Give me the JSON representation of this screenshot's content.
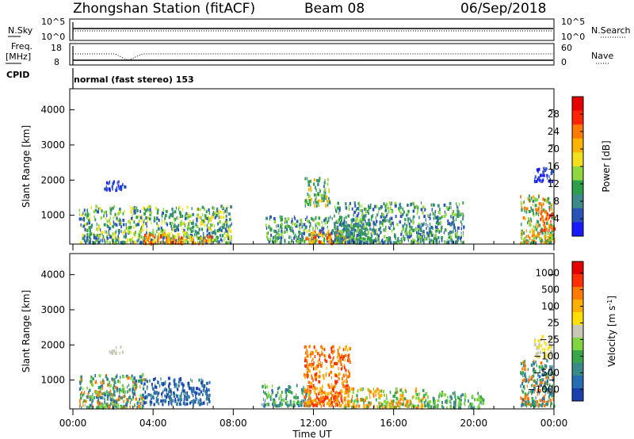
{
  "header": {
    "title": "Zhongshan Station (fitACF)",
    "beam": "Beam 08",
    "date": "06/Sep/2018"
  },
  "nsky_panel": {
    "left_label": "N.Sky",
    "left_ticks": [
      "10^5",
      "10^0"
    ],
    "right_label": "N.Search",
    "right_ticks": [
      "10^5",
      "10^0"
    ]
  },
  "freq_panel": {
    "left_label_line1": "Freq.",
    "left_label_line2": "[MHz]",
    "left_ticks": [
      "18",
      "8"
    ],
    "right_label": "Nave",
    "right_ticks": [
      "60",
      "0"
    ]
  },
  "cpid": {
    "label": "CPID",
    "value": "normal (fast stereo) 153"
  },
  "chart_data": [
    {
      "type": "heatmap",
      "name": "power",
      "ylabel": "Slant Range [km]",
      "ylim": [
        180,
        4600
      ],
      "yticks": [
        "1000",
        "2000",
        "3000",
        "4000"
      ],
      "colorbar_label": "Power [dB]",
      "colorbar_ticks": [
        "4",
        "8",
        "12",
        "16",
        "20",
        "24",
        "28"
      ],
      "colorbar_colors": [
        "#1a1aff",
        "#2a53b8",
        "#3d8a8a",
        "#2e9e4a",
        "#8fd640",
        "#f0e020",
        "#ffb400",
        "#ff7a00",
        "#ff2400",
        "#e60000"
      ],
      "regions": [
        {
          "t0": 0.3,
          "t1": 7.9,
          "r0": 250,
          "r1": 1300,
          "colors": [
            "#2a53b8",
            "#3d8a8a",
            "#2e9e4a",
            "#8fd640",
            "#f0e020"
          ]
        },
        {
          "t0": 3.5,
          "t1": 7.0,
          "r0": 230,
          "r1": 500,
          "colors": [
            "#ff7a00",
            "#ff2400",
            "#f0e020",
            "#ffb400"
          ]
        },
        {
          "t0": 1.5,
          "t1": 2.6,
          "r0": 1750,
          "r1": 2000,
          "colors": [
            "#2a53b8",
            "#1a1aff"
          ]
        },
        {
          "t0": 9.6,
          "t1": 15.0,
          "r0": 250,
          "r1": 1000,
          "colors": [
            "#2a53b8",
            "#3d8a8a",
            "#2e9e4a",
            "#8fd640"
          ]
        },
        {
          "t0": 11.6,
          "t1": 13.6,
          "r0": 240,
          "r1": 600,
          "colors": [
            "#ff2400",
            "#ff7a00",
            "#ffb400",
            "#f0e020"
          ]
        },
        {
          "t0": 11.5,
          "t1": 12.8,
          "r0": 1300,
          "r1": 2100,
          "colors": [
            "#3d8a8a",
            "#2e9e4a",
            "#8fd640",
            "#ffb400"
          ]
        },
        {
          "t0": 13.0,
          "t1": 19.5,
          "r0": 250,
          "r1": 1400,
          "colors": [
            "#2a53b8",
            "#3d8a8a",
            "#2e9e4a",
            "#8fd640"
          ]
        },
        {
          "t0": 22.3,
          "t1": 24.0,
          "r0": 250,
          "r1": 1600,
          "colors": [
            "#3d8a8a",
            "#2e9e4a",
            "#8fd640",
            "#ffb400",
            "#ff7a00"
          ]
        },
        {
          "t0": 23.3,
          "t1": 24.0,
          "r0": 600,
          "r1": 1200,
          "colors": [
            "#ff2400",
            "#ff7a00"
          ]
        },
        {
          "t0": 23.0,
          "t1": 23.9,
          "r0": 2000,
          "r1": 2400,
          "colors": [
            "#2a53b8",
            "#1a1aff"
          ]
        }
      ]
    },
    {
      "type": "heatmap",
      "name": "velocity",
      "ylabel": "Slant Range [km]",
      "ylim": [
        180,
        4600
      ],
      "yticks": [
        "1000",
        "2000",
        "3000",
        "4000"
      ],
      "xlabel": "Time UT",
      "xticks": [
        "00:00",
        "04:00",
        "08:00",
        "12:00",
        "16:00",
        "20:00",
        "00:00"
      ],
      "colorbar_label": "Velocity [m s",
      "colorbar_label_sup": "-1",
      "colorbar_label_end": "]",
      "colorbar_ticks": [
        "1000",
        "500",
        "100",
        "25",
        "−25",
        "−100",
        "−500",
        "−1000"
      ],
      "colorbar_colors": [
        "#1c3fae",
        "#2a6cb0",
        "#3a8a8a",
        "#3aa64a",
        "#7fd640",
        "#c8c8b4",
        "#ffe000",
        "#ffb000",
        "#ff7a00",
        "#ff3000",
        "#e60000"
      ],
      "regions": [
        {
          "t0": 0.3,
          "t1": 3.5,
          "r0": 250,
          "r1": 1200,
          "colors": [
            "#3a8a8a",
            "#2a6cb0",
            "#ff7a00",
            "#7fd640",
            "#3aa64a"
          ]
        },
        {
          "t0": 3.5,
          "t1": 6.8,
          "r0": 350,
          "r1": 1100,
          "colors": [
            "#1c3fae",
            "#2a6cb0",
            "#3a8a8a"
          ]
        },
        {
          "t0": 1.8,
          "t1": 2.5,
          "r0": 1800,
          "r1": 2000,
          "colors": [
            "#c8c8b4"
          ]
        },
        {
          "t0": 9.4,
          "t1": 11.8,
          "r0": 300,
          "r1": 900,
          "colors": [
            "#3a8a8a",
            "#3aa64a",
            "#7fd640",
            "#2a6cb0"
          ]
        },
        {
          "t0": 11.5,
          "t1": 13.8,
          "r0": 300,
          "r1": 2000,
          "colors": [
            "#ff7a00",
            "#ffb000",
            "#ff3000"
          ]
        },
        {
          "t0": 13.5,
          "t1": 17.5,
          "r0": 250,
          "r1": 800,
          "colors": [
            "#ff7a00",
            "#ffb000",
            "#3aa64a",
            "#7fd640"
          ]
        },
        {
          "t0": 17.5,
          "t1": 20.5,
          "r0": 250,
          "r1": 700,
          "colors": [
            "#7fd640",
            "#3aa64a",
            "#3a8a8a"
          ]
        },
        {
          "t0": 22.3,
          "t1": 24.0,
          "r0": 300,
          "r1": 1600,
          "colors": [
            "#ff7a00",
            "#3a8a8a",
            "#3aa64a",
            "#2a6cb0"
          ]
        },
        {
          "t0": 23.0,
          "t1": 23.9,
          "r0": 1700,
          "r1": 2300,
          "colors": [
            "#c8c8b4",
            "#ffe000"
          ]
        }
      ]
    }
  ]
}
